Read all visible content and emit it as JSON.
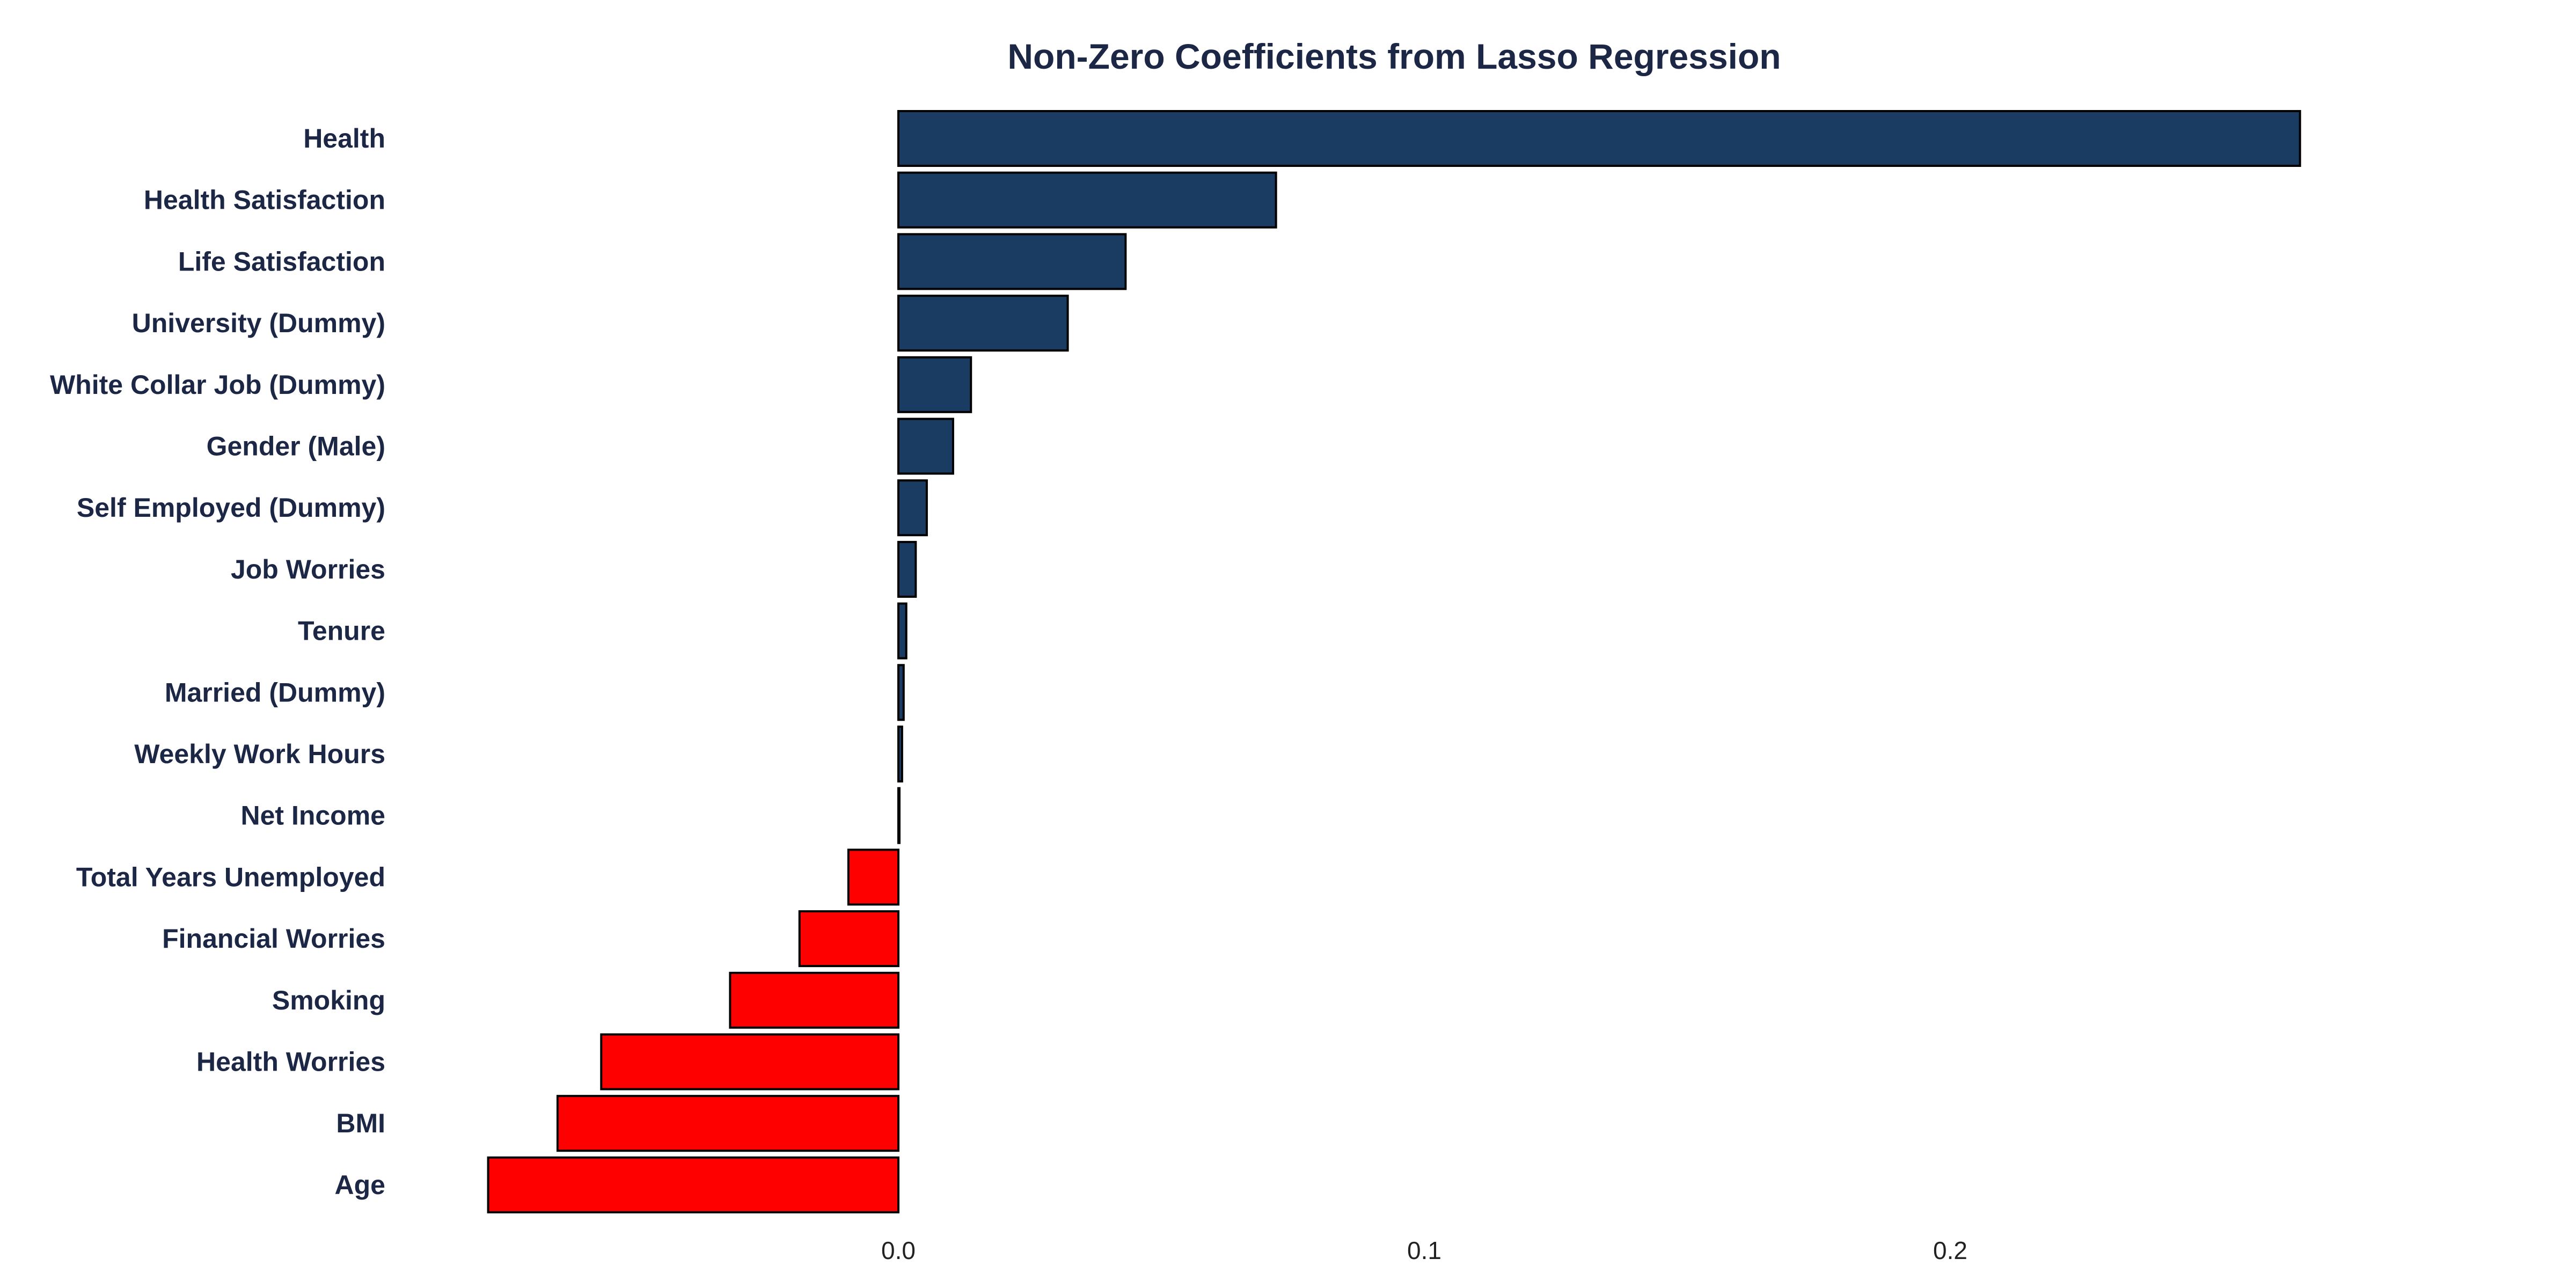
{
  "colors": {
    "positive": "#1a3c63",
    "negative": "#ff0000",
    "bar_outline": "#000000",
    "text": "#1c2645",
    "tick_text": "#222222",
    "background": "#ffffff"
  },
  "chart_data": {
    "type": "bar",
    "orientation": "horizontal",
    "title": "Non-Zero Coefficients from Lasso Regression",
    "xlabel": "",
    "ylabel": "",
    "xlim": [
      -0.078,
      0.29
    ],
    "grid": false,
    "legend": "none",
    "x_ticks": [
      0.0,
      0.1,
      0.2
    ],
    "x_tick_labels": [
      "0.0",
      "0.1",
      "0.2"
    ],
    "categories": [
      "Health",
      "Health Satisfaction",
      "Life Satisfaction",
      "University (Dummy)",
      "White Collar Job (Dummy)",
      "Gender (Male)",
      "Self Employed (Dummy)",
      "Job Worries",
      "Tenure",
      "Married (Dummy)",
      "Weekly Work Hours",
      "Net Income",
      "Total Years Unemployed",
      "Financial Worries",
      "Smoking",
      "Health Worries",
      "BMI",
      "Age"
    ],
    "values": [
      0.2665,
      0.0718,
      0.0432,
      0.0322,
      0.0138,
      0.0104,
      0.0054,
      0.0033,
      0.0015,
      0.001,
      0.0007,
      0.0001,
      -0.0095,
      -0.0188,
      -0.032,
      -0.0565,
      -0.0648,
      -0.078
    ]
  }
}
